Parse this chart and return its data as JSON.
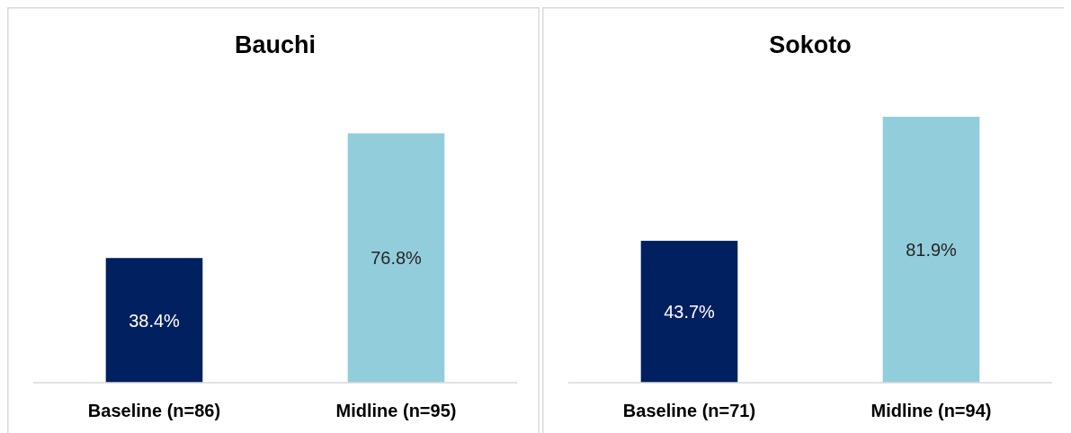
{
  "chart_data": [
    {
      "type": "bar",
      "title": "Bauchi",
      "categories": [
        "Baseline (n=86)",
        "Midline (n=95)"
      ],
      "values": [
        38.4,
        76.8
      ],
      "colors": [
        "#002060",
        "#92cddc"
      ],
      "value_labels": [
        "38.4%",
        "76.8%"
      ],
      "tick_labels": "x"
    },
    {
      "type": "bar",
      "title": "Sokoto",
      "categories": [
        "Baseline (n=71)",
        "Midline (n=94)"
      ],
      "values": [
        43.7,
        81.9
      ],
      "colors": [
        "#002060",
        "#92cddc"
      ],
      "value_labels": [
        "43.7%",
        "81.9%"
      ],
      "tick_labels": "x"
    }
  ]
}
